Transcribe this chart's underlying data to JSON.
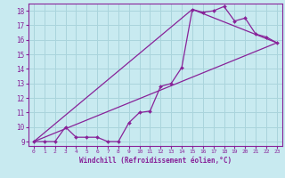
{
  "title": "",
  "xlabel": "Windchill (Refroidissement éolien,°C)",
  "ylabel": "",
  "bg_color": "#c8eaf0",
  "grid_color": "#aad4dc",
  "line_color": "#882299",
  "xlim": [
    -0.5,
    23.5
  ],
  "ylim": [
    8.7,
    18.5
  ],
  "xticks": [
    0,
    1,
    2,
    3,
    4,
    5,
    6,
    7,
    8,
    9,
    10,
    11,
    12,
    13,
    14,
    15,
    16,
    17,
    18,
    19,
    20,
    21,
    22,
    23
  ],
  "yticks": [
    9,
    10,
    11,
    12,
    13,
    14,
    15,
    16,
    17,
    18
  ],
  "curve_x": [
    0,
    1,
    2,
    3,
    4,
    5,
    6,
    7,
    8,
    9,
    10,
    11,
    12,
    13,
    14,
    15,
    16,
    17,
    18,
    19,
    20,
    21,
    22,
    23
  ],
  "curve_y": [
    9.0,
    9.0,
    9.0,
    10.0,
    9.3,
    9.3,
    9.3,
    9.0,
    9.0,
    10.3,
    11.0,
    11.1,
    12.8,
    13.0,
    14.1,
    18.1,
    17.9,
    18.0,
    18.3,
    17.3,
    17.5,
    16.4,
    16.2,
    15.8
  ],
  "line1_x": [
    0,
    23
  ],
  "line1_y": [
    9.0,
    15.8
  ],
  "line2_x": [
    0,
    15,
    23
  ],
  "line2_y": [
    9.0,
    18.1,
    15.8
  ],
  "marker_x": [
    0,
    1,
    2,
    3,
    4,
    5,
    6,
    7,
    8,
    9,
    10,
    11,
    12,
    13,
    14,
    15,
    16,
    17,
    18,
    19,
    20,
    21,
    22,
    23
  ],
  "marker_y": [
    9.0,
    9.0,
    9.0,
    10.0,
    9.3,
    9.3,
    9.3,
    9.0,
    9.0,
    10.3,
    11.0,
    11.1,
    12.8,
    13.0,
    14.1,
    18.1,
    17.9,
    18.0,
    18.3,
    17.3,
    17.5,
    16.4,
    16.2,
    15.8
  ]
}
